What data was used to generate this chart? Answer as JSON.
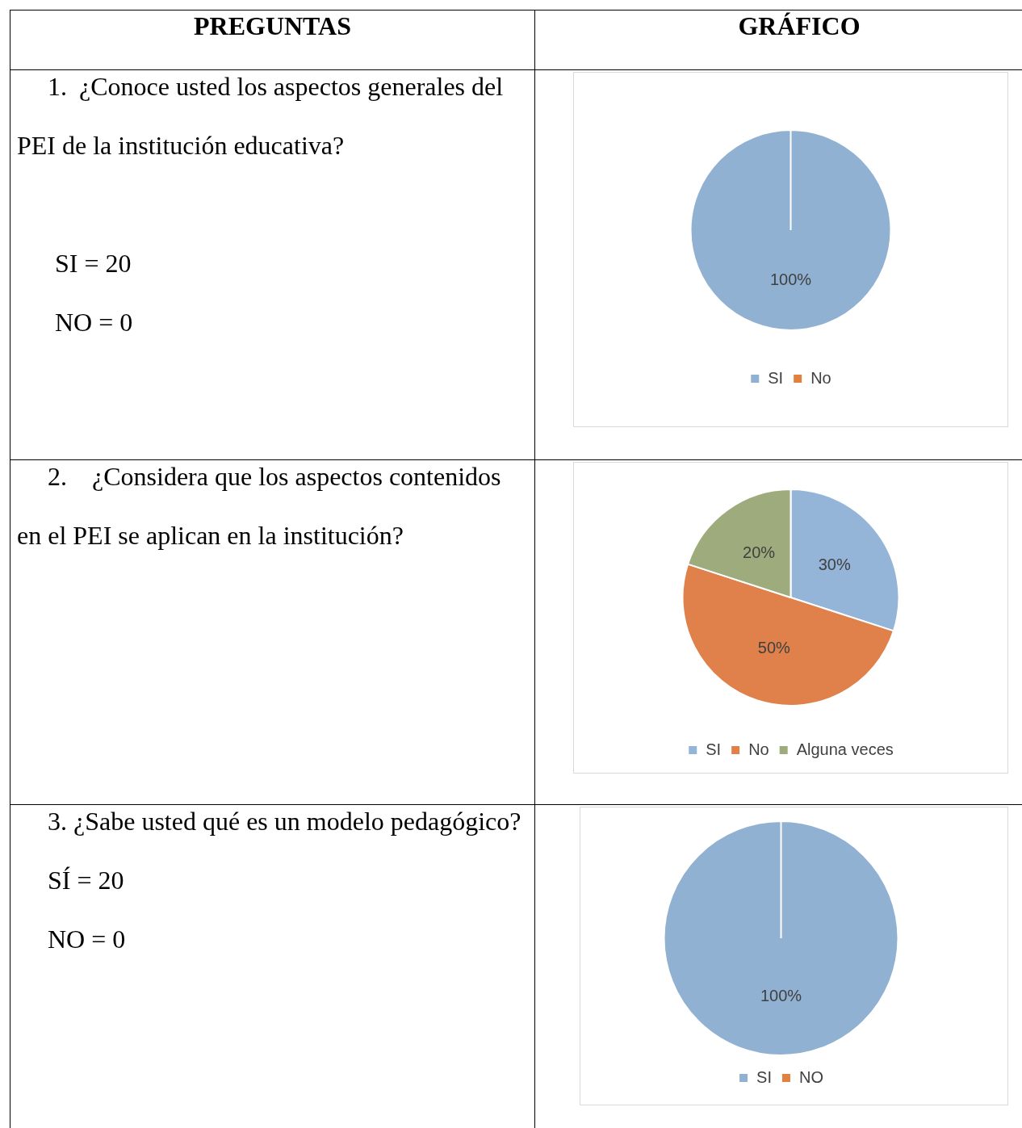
{
  "chart_data": [
    {
      "type": "other",
      "annotations": [
        "PREGUNTAS",
        "GRÁFICO"
      ]
    },
    {
      "type": "pie",
      "title": "1. ¿Conoce usted los aspectos generales del PEI de la institución educativa?",
      "annotations": [
        "SI = 20",
        "NO = 0"
      ],
      "categories": [
        "SI",
        "No"
      ],
      "values": [
        100,
        0
      ],
      "colors": [
        "#91b1d2",
        "#e2803f"
      ],
      "value_labels": [
        "100%",
        null
      ],
      "legend": "bottom"
    },
    {
      "type": "pie",
      "title": "2. ¿Considera que los aspectos contenidos en el PEI se aplican en la institución?",
      "categories": [
        "SI",
        "No",
        "Alguna veces"
      ],
      "values": [
        30,
        50,
        20
      ],
      "colors": [
        "#95b5d8",
        "#e0804a",
        "#9eab7c"
      ],
      "value_labels": [
        "30%",
        "50%",
        "20%"
      ],
      "legend": "bottom"
    },
    {
      "type": "pie",
      "title": "3. ¿Sabe usted qué es un modelo pedagógico?",
      "annotations": [
        "SÍ = 20",
        "NO = 0"
      ],
      "categories": [
        "SI",
        "NO"
      ],
      "values": [
        100,
        0
      ],
      "colors": [
        "#91b1d2",
        "#e2803f"
      ],
      "value_labels": [
        "100%",
        null
      ],
      "legend": "bottom"
    }
  ]
}
